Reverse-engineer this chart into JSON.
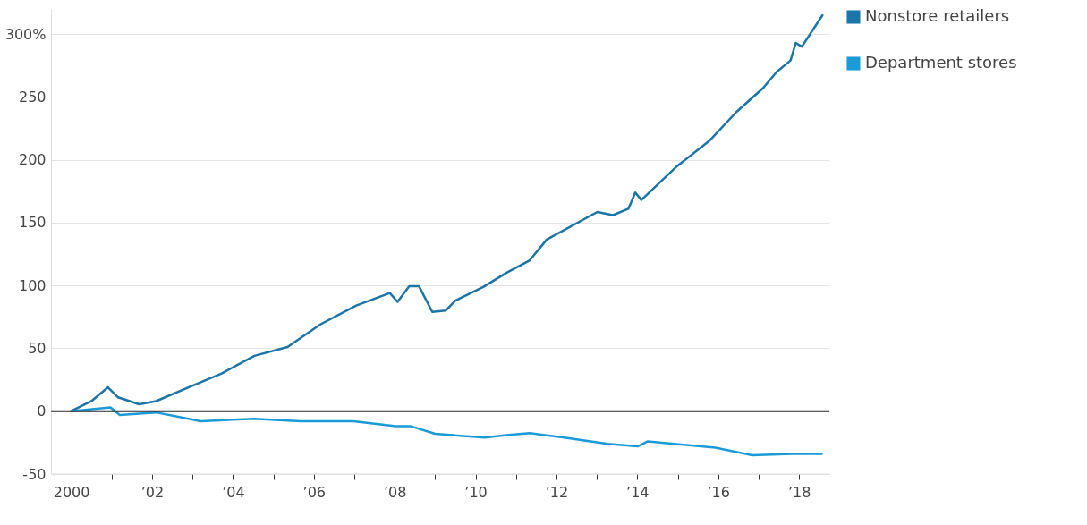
{
  "chart_data": {
    "type": "line",
    "series": [
      {
        "name": "Nonstore retailers",
        "color": "#1b75a6",
        "x": [
          2000,
          2000.5,
          2000.91,
          2001.16,
          2001.68,
          2002.1,
          2002.9,
          2003.72,
          2004.53,
          2005.35,
          2006.16,
          2007.05,
          2007.88,
          2008.07,
          2008.36,
          2008.6,
          2008.93,
          2009.26,
          2009.5,
          2010.2,
          2010.76,
          2011.34,
          2011.76,
          2013.01,
          2013.4,
          2013.78,
          2013.95,
          2014.1,
          2014.95,
          2015.78,
          2016.45,
          2017.11,
          2017.45,
          2017.79,
          2017.92,
          2018.07,
          2018.58
        ],
        "values": [
          0,
          8,
          19,
          11,
          5.5,
          8,
          19,
          30,
          44,
          51,
          69,
          84,
          94,
          87,
          99.5,
          99.5,
          79,
          80,
          88,
          99,
          110,
          120,
          136.5,
          158.5,
          156,
          161,
          174,
          168,
          194,
          215,
          238,
          257,
          270,
          279,
          293,
          290,
          315
        ]
      },
      {
        "name": "Department stores",
        "color": "#1a9ad6",
        "x": [
          2000,
          2000.97,
          2001.2,
          2002.1,
          2002.9,
          2003.2,
          2004.53,
          2005.67,
          2006.98,
          2008.03,
          2008.4,
          2009.0,
          2010.23,
          2010.76,
          2011.34,
          2012.19,
          2013.27,
          2014.01,
          2014.26,
          2015.93,
          2016.84,
          2017.83,
          2018.56
        ],
        "values": [
          0,
          3,
          -3,
          -1,
          -6,
          -8,
          -6,
          -8,
          -8,
          -12,
          -12,
          -18,
          -21,
          -19,
          -17.5,
          -21,
          -26,
          -28,
          -24,
          -29,
          -35,
          -34,
          -34
        ]
      }
    ],
    "xlim": [
      1999.5,
      2018.75
    ],
    "xticks": [
      {
        "value": 2000,
        "label": "2000"
      },
      {
        "value": 2001,
        "label": null
      },
      {
        "value": 2002,
        "label": "’02"
      },
      {
        "value": 2003,
        "label": null
      },
      {
        "value": 2004,
        "label": "’04"
      },
      {
        "value": 2005,
        "label": null
      },
      {
        "value": 2006,
        "label": "’06"
      },
      {
        "value": 2007,
        "label": null
      },
      {
        "value": 2008,
        "label": "’08"
      },
      {
        "value": 2009,
        "label": null
      },
      {
        "value": 2010,
        "label": "’10"
      },
      {
        "value": 2011,
        "label": null
      },
      {
        "value": 2012,
        "label": "’12"
      },
      {
        "value": 2013,
        "label": null
      },
      {
        "value": 2014,
        "label": "’14"
      },
      {
        "value": 2015,
        "label": null
      },
      {
        "value": 2016,
        "label": "’16"
      },
      {
        "value": 2017,
        "label": null
      },
      {
        "value": 2018,
        "label": "’18"
      }
    ],
    "ylim": [
      -50,
      320
    ],
    "yticks": [
      -50,
      0,
      50,
      100,
      150,
      200,
      250,
      {
        "value": 300,
        "label": "300%"
      }
    ],
    "ref_lines": [
      {
        "axis": "y",
        "value": 0,
        "color": "#333333"
      }
    ],
    "grid": "y",
    "legend": "right"
  }
}
